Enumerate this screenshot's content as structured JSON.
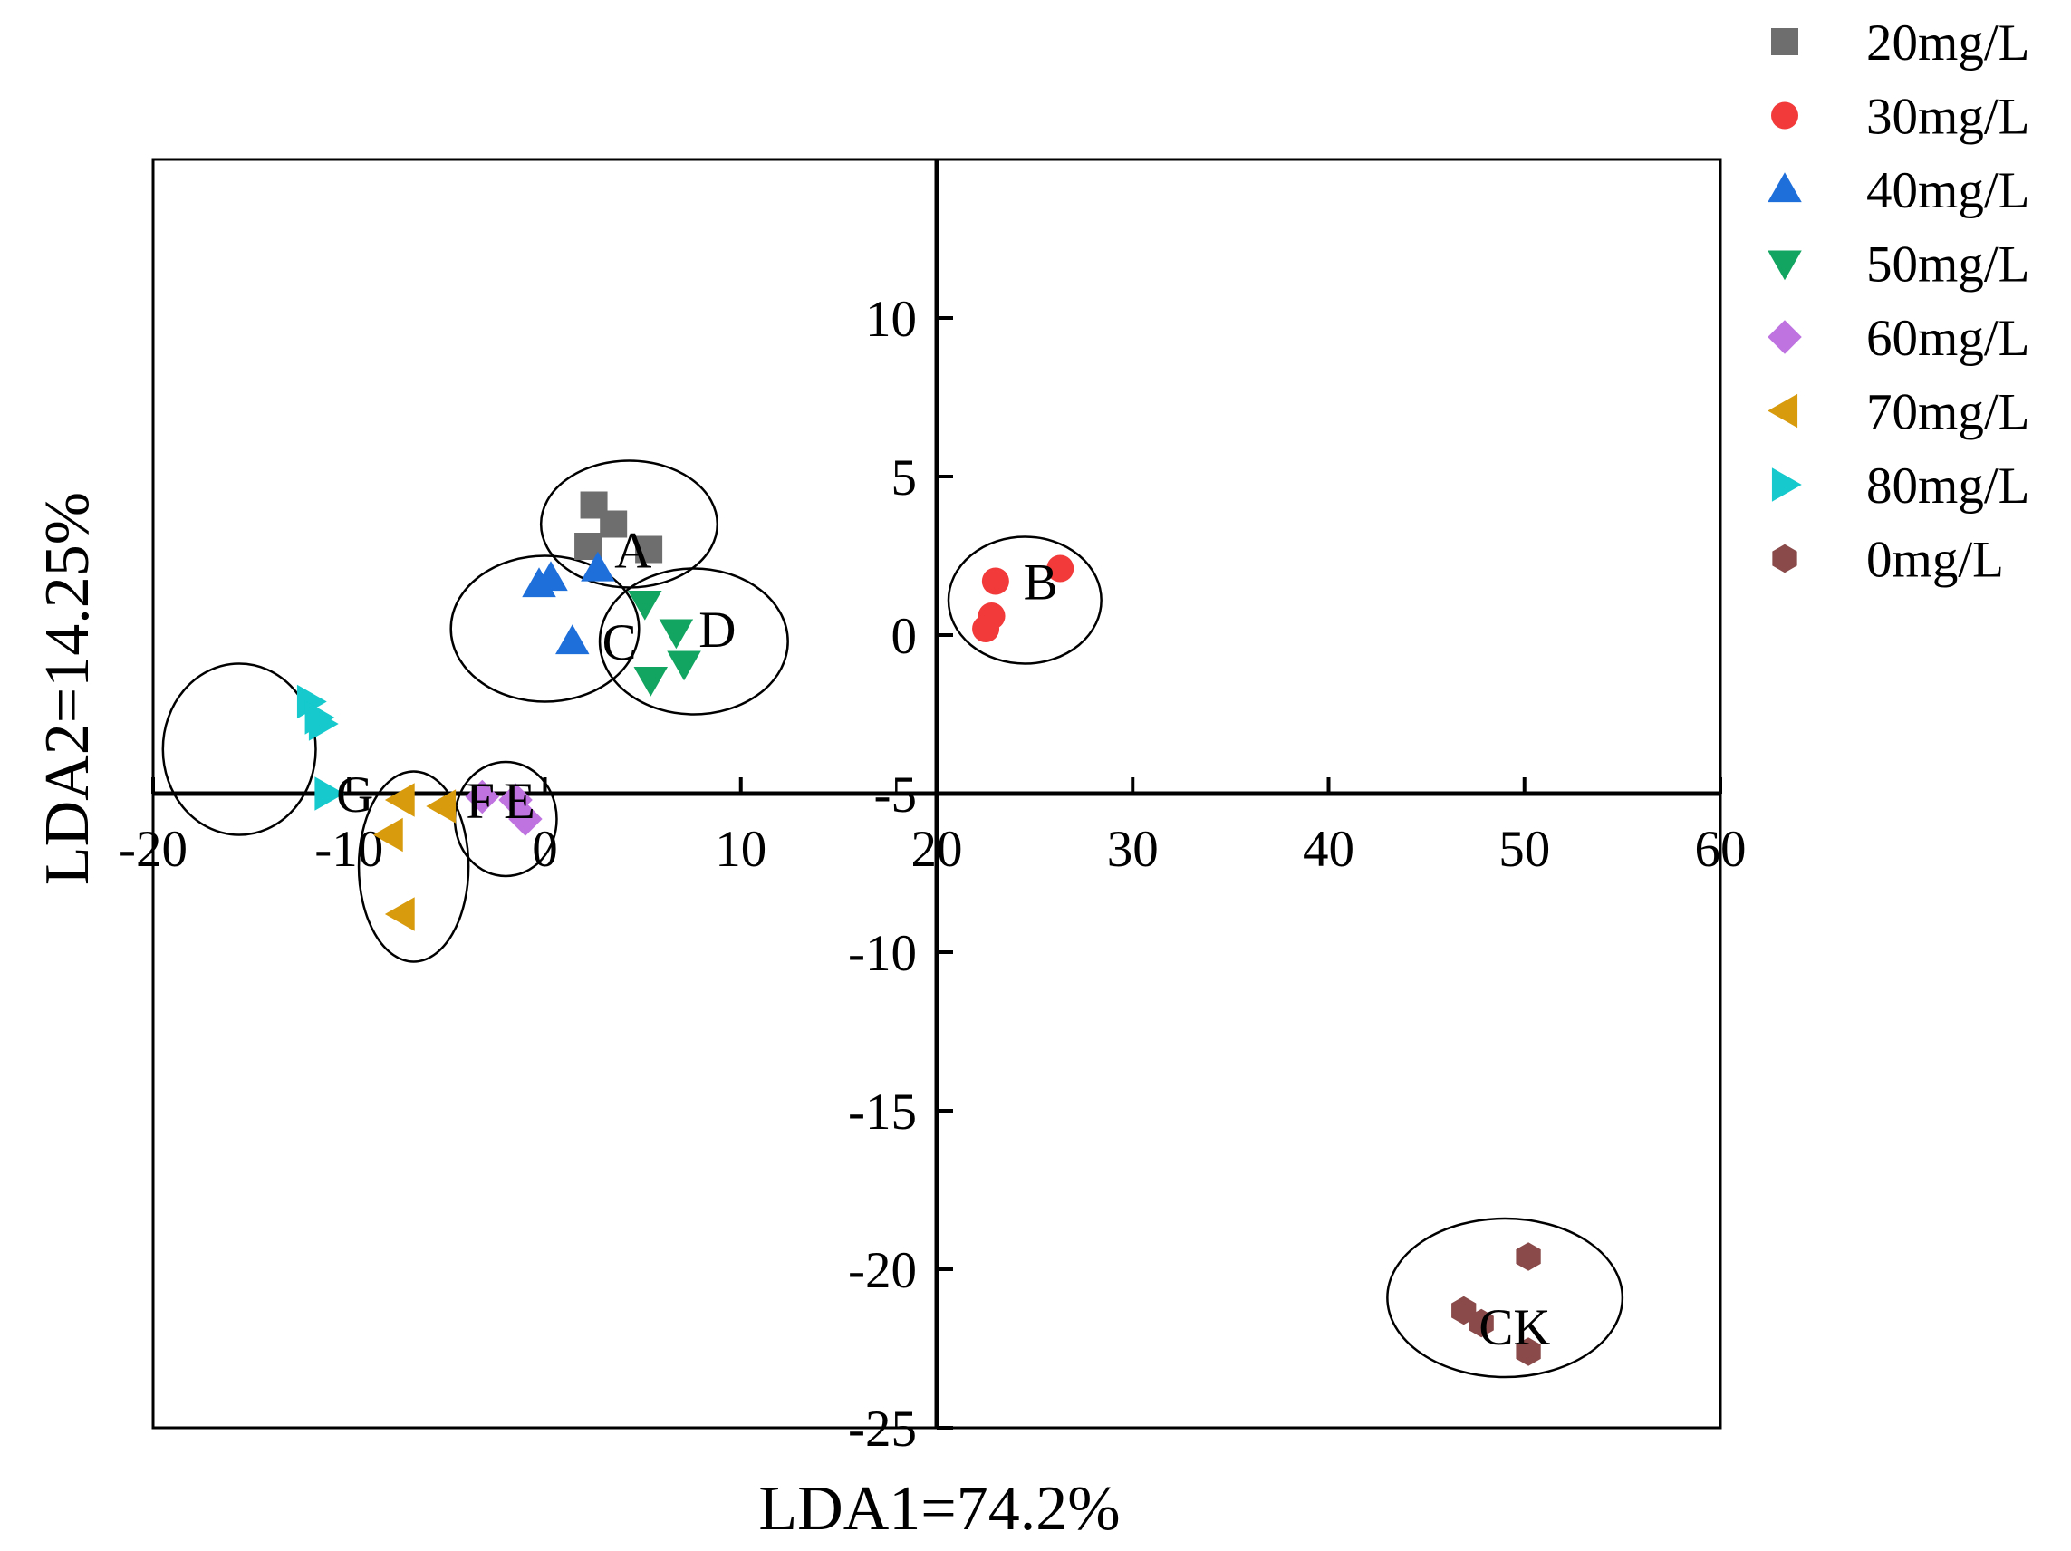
{
  "chart_data": {
    "type": "scatter",
    "title": "",
    "xlabel": "LDA1=74.2%",
    "ylabel": "LDA2=14.25%",
    "xlim": [
      -20,
      60
    ],
    "ylim": [
      -25,
      15
    ],
    "xticks": [
      -20,
      -10,
      0,
      10,
      20,
      30,
      40,
      50,
      60
    ],
    "xtick_labels": [
      "-20",
      "-10",
      "0",
      "10",
      "20",
      "30",
      "40",
      "50",
      "60"
    ],
    "yticks": [
      -25,
      -20,
      -15,
      -10,
      -5,
      0,
      5,
      10
    ],
    "ytick_labels": [
      "-25",
      "-20",
      "-15",
      "-10",
      "-5",
      "0",
      "5",
      "10"
    ],
    "grid": false,
    "legend_position": "top-right outside",
    "series": [
      {
        "name": "20mg/L",
        "marker": "square",
        "color": "#6e6e6e",
        "x": [
          2.5,
          3.5,
          2.2,
          5.3
        ],
        "y": [
          4.1,
          3.5,
          2.8,
          2.7
        ]
      },
      {
        "name": "30mg/L",
        "marker": "circle",
        "color": "#f23a3a",
        "x": [
          26.3,
          23.0,
          22.8,
          22.5
        ],
        "y": [
          2.1,
          1.7,
          0.6,
          0.2
        ]
      },
      {
        "name": "40mg/L",
        "marker": "triangle-up",
        "color": "#1f6fdb",
        "x": [
          -0.3,
          0.3,
          2.7,
          1.4
        ],
        "y": [
          1.6,
          1.8,
          2.1,
          -0.2
        ]
      },
      {
        "name": "50mg/L",
        "marker": "triangle-down",
        "color": "#12a561",
        "x": [
          5.1,
          6.7,
          7.1,
          5.4
        ],
        "y": [
          1.0,
          0.1,
          -0.9,
          -1.4
        ]
      },
      {
        "name": "60mg/L",
        "marker": "diamond",
        "color": "#bf73e0",
        "x": [
          -3.2,
          -1.5,
          -1.0
        ],
        "y": [
          -5.1,
          -5.2,
          -5.8
        ]
      },
      {
        "name": "70mg/L",
        "marker": "triangle-left",
        "color": "#d89b0d",
        "x": [
          -7.3,
          -5.2,
          -7.9,
          -7.3
        ],
        "y": [
          -5.2,
          -5.4,
          -6.3,
          -8.8
        ]
      },
      {
        "name": "80mg/L",
        "marker": "triangle-right",
        "color": "#15c9cc",
        "x": [
          -12.0,
          -11.6,
          -11.4,
          -11.1
        ],
        "y": [
          -2.1,
          -2.6,
          -2.8,
          -5.0
        ]
      },
      {
        "name": "0mg/L",
        "marker": "hexagon",
        "color": "#8a4a4a",
        "x": [
          50.2,
          46.9,
          47.8,
          50.2
        ],
        "y": [
          -19.6,
          -21.3,
          -21.7,
          -22.6
        ]
      }
    ],
    "groups": [
      {
        "label": "A",
        "label_at": [
          4.5,
          2.7
        ],
        "center": [
          4.3,
          3.5
        ],
        "radii": [
          4.5,
          2.0
        ]
      },
      {
        "label": "B",
        "label_at": [
          25.3,
          1.7
        ],
        "center": [
          24.5,
          1.1
        ],
        "radii": [
          3.9,
          2.0
        ]
      },
      {
        "label": "C",
        "label_at": [
          3.8,
          -0.2
        ],
        "center": [
          0.0,
          0.2
        ],
        "radii": [
          4.8,
          2.3
        ]
      },
      {
        "label": "D",
        "label_at": [
          8.8,
          0.2
        ],
        "center": [
          7.6,
          -0.2
        ],
        "radii": [
          4.8,
          2.3
        ]
      },
      {
        "label": "E",
        "label_at": [
          -1.3,
          -5.2
        ],
        "center": [
          -2.0,
          -5.8
        ],
        "radii": [
          2.6,
          1.8
        ]
      },
      {
        "label": "F",
        "label_at": [
          -3.3,
          -5.2
        ],
        "center": [
          -6.7,
          -7.3
        ],
        "radii": [
          2.8,
          3.0
        ]
      },
      {
        "label": "G",
        "label_at": [
          -9.7,
          -5.0
        ],
        "center": [
          -15.6,
          -3.6
        ],
        "radii": [
          3.9,
          2.7
        ]
      },
      {
        "label": "CK",
        "label_at": [
          49.5,
          -21.8
        ],
        "center": [
          49.0,
          -20.9
        ],
        "radii": [
          6.0,
          2.5
        ]
      }
    ]
  }
}
